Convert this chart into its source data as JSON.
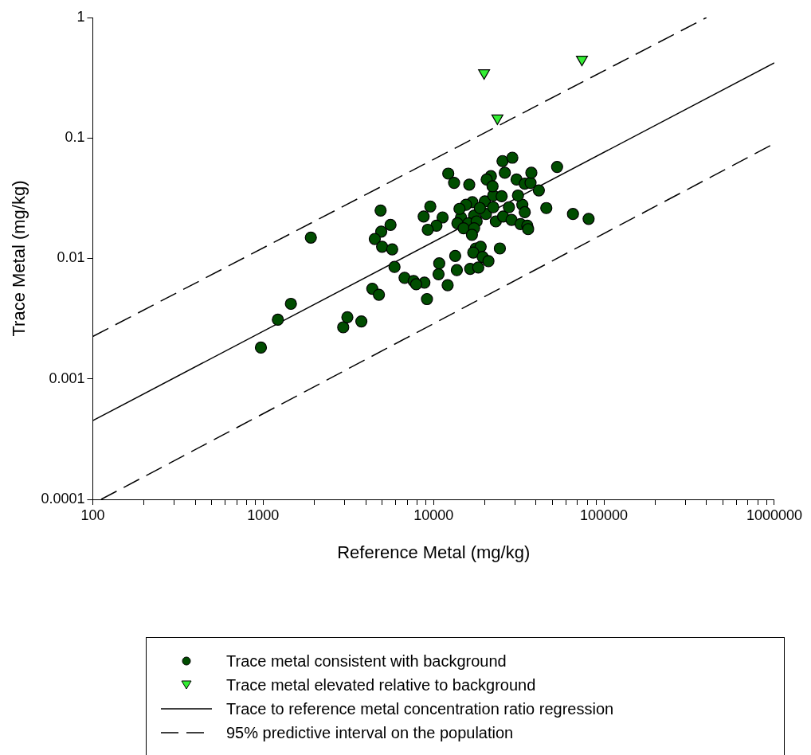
{
  "chart_data": {
    "type": "scatter",
    "xlabel": "Reference Metal (mg/kg)",
    "ylabel": "Trace Metal (mg/kg)",
    "log": "xy",
    "xlim": [
      100,
      1000000
    ],
    "ylim": [
      0.0001,
      1
    ],
    "xticks": [
      100,
      {
        "value": 200,
        "label": null
      },
      {
        "value": 300,
        "label": null
      },
      {
        "value": 400,
        "label": null
      },
      {
        "value": 500,
        "label": null
      },
      {
        "value": 600,
        "label": null
      },
      {
        "value": 700,
        "label": null
      },
      {
        "value": 800,
        "label": null
      },
      {
        "value": 900,
        "label": null
      },
      1000,
      {
        "value": 2000,
        "label": null
      },
      {
        "value": 3000,
        "label": null
      },
      {
        "value": 4000,
        "label": null
      },
      {
        "value": 5000,
        "label": null
      },
      {
        "value": 6000,
        "label": null
      },
      {
        "value": 7000,
        "label": null
      },
      {
        "value": 8000,
        "label": null
      },
      {
        "value": 9000,
        "label": null
      },
      10000,
      {
        "value": 20000,
        "label": null
      },
      {
        "value": 30000,
        "label": null
      },
      {
        "value": 40000,
        "label": null
      },
      {
        "value": 50000,
        "label": null
      },
      {
        "value": 60000,
        "label": null
      },
      {
        "value": 70000,
        "label": null
      },
      {
        "value": 80000,
        "label": null
      },
      {
        "value": 90000,
        "label": null
      },
      100000,
      {
        "value": 200000,
        "label": null
      },
      {
        "value": 300000,
        "label": null
      },
      {
        "value": 400000,
        "label": null
      },
      {
        "value": 500000,
        "label": null
      },
      {
        "value": 600000,
        "label": null
      },
      {
        "value": 700000,
        "label": null
      },
      {
        "value": 800000,
        "label": null
      },
      {
        "value": 900000,
        "label": null
      },
      1000000
    ],
    "yticks": [
      0.0001,
      0.001,
      0.01,
      0.1,
      1
    ],
    "grid": false,
    "legend": "bottom",
    "series": [
      {
        "name": "Trace metal consistent with background",
        "type": "scatter",
        "marker": "circle",
        "color": "#004d00",
        "x": [
          970,
          1220,
          1455,
          1905,
          2950,
          3120,
          3770,
          4370,
          4780,
          4890,
          5590,
          4930,
          4520,
          4990,
          5720,
          5900,
          6760,
          7640,
          8840,
          7910,
          9150,
          12100,
          10700,
          10800,
          13700,
          16400,
          18300,
          13400,
          17700,
          18900,
          17100,
          19400,
          21000,
          24500,
          9570,
          8750,
          11300,
          10400,
          9250,
          14500,
          17300,
          20300,
          13800,
          16000,
          17900,
          15000,
          17300,
          16800,
          23200,
          25600,
          28700,
          32400,
          35500,
          35900,
          45900,
          65800,
          81300,
          16900,
          15500,
          20000,
          14200,
          18700,
          22400,
          27700,
          33200,
          34300,
          22400,
          25100,
          31300,
          12200,
          13200,
          16200,
          21700,
          20500,
          22200,
          25400,
          29000,
          26200,
          30700,
          34300,
          37100,
          37500,
          41500,
          53100
        ],
        "values": [
          0.00182,
          0.0031,
          0.0042,
          0.0149,
          0.00268,
          0.00325,
          0.003,
          0.0056,
          0.005,
          0.025,
          0.019,
          0.0167,
          0.0145,
          0.0125,
          0.0119,
          0.0085,
          0.0069,
          0.0065,
          0.0063,
          0.0061,
          0.0046,
          0.006,
          0.0074,
          0.0091,
          0.008,
          0.0082,
          0.0084,
          0.0105,
          0.0121,
          0.0125,
          0.0112,
          0.0103,
          0.0095,
          0.0121,
          0.027,
          0.0223,
          0.0219,
          0.0187,
          0.0173,
          0.0219,
          0.0227,
          0.0234,
          0.0196,
          0.0196,
          0.0203,
          0.0178,
          0.0178,
          0.0157,
          0.0203,
          0.0223,
          0.0209,
          0.0193,
          0.0187,
          0.0175,
          0.0262,
          0.0234,
          0.0213,
          0.0293,
          0.0279,
          0.0298,
          0.0258,
          0.0262,
          0.0266,
          0.0266,
          0.0279,
          0.0242,
          0.0333,
          0.0328,
          0.0333,
          0.0506,
          0.0424,
          0.041,
          0.0482,
          0.0452,
          0.0397,
          0.0643,
          0.0686,
          0.0514,
          0.0452,
          0.0417,
          0.0424,
          0.0514,
          0.0367,
          0.0575
        ]
      },
      {
        "name": "Trace metal elevated relative to background",
        "type": "scatter",
        "marker": "triangle",
        "color": "#33ee33",
        "x": [
          19800,
          23700,
          74300
        ],
        "values": [
          0.347,
          0.146,
          0.449
        ]
      },
      {
        "name": "Trace to reference metal concentration ratio regression",
        "type": "line",
        "marker": "none",
        "line_style": "solid",
        "color": "#000000",
        "x": [
          100,
          1000000
        ],
        "values": [
          0.00045,
          0.42
        ]
      },
      {
        "name": "95% predictive interval on the population",
        "type": "line",
        "marker": "none",
        "line_style": "dashed",
        "color": "#000000",
        "x": [
          100,
          400000
        ],
        "values": [
          0.00225,
          1
        ]
      },
      {
        "type": "line",
        "marker": "none",
        "line_style": "dashed",
        "color": "#000000",
        "x": [
          112,
          1000000
        ],
        "values": [
          0.0001,
          0.09
        ]
      }
    ]
  }
}
